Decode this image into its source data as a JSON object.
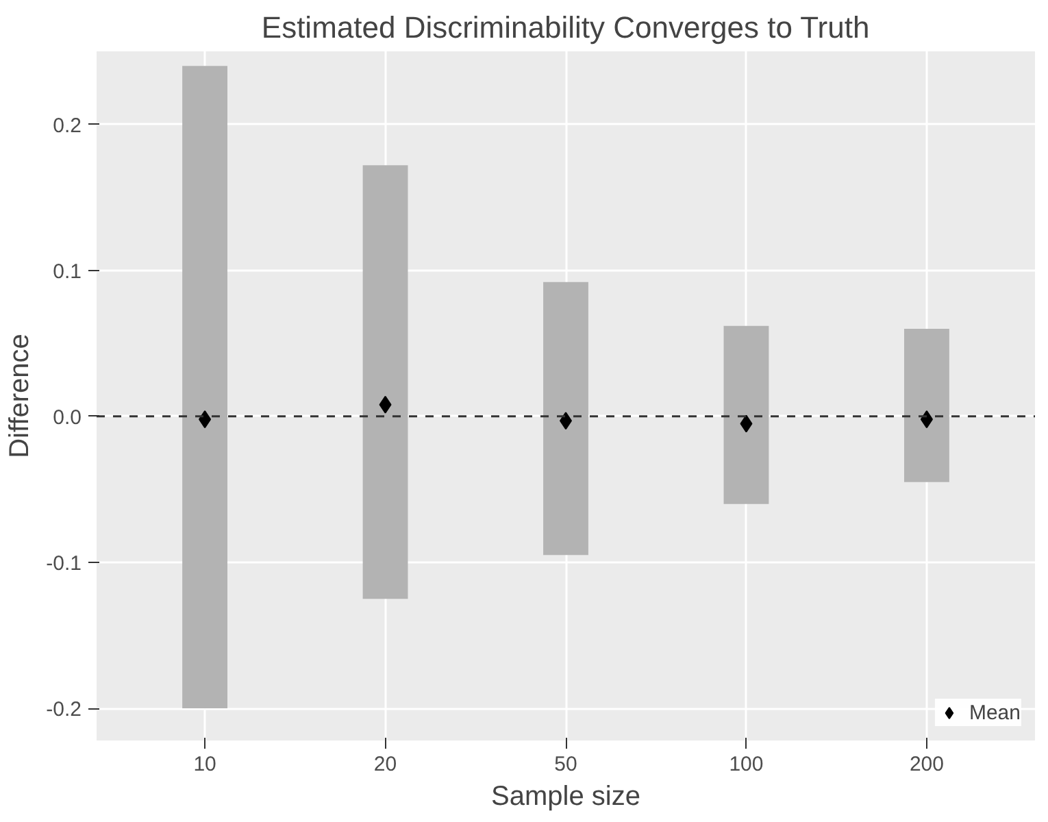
{
  "chart_data": {
    "type": "bar",
    "title": "Estimated Discriminability Converges to Truth",
    "xlabel": "Sample size",
    "ylabel": "Difference",
    "categories": [
      "10",
      "20",
      "50",
      "100",
      "200"
    ],
    "series": [
      {
        "color": "#b3b3b3",
        "base": [
          -0.2,
          -0.125,
          -0.095,
          -0.06,
          -0.045
        ],
        "values": [
          0.44,
          0.297,
          0.187,
          0.122,
          0.105
        ]
      },
      {
        "type": "scatter",
        "name": "Mean",
        "color": "#000000",
        "marker": "diamond",
        "x": [
          "10",
          "20",
          "50",
          "100",
          "200"
        ],
        "values": [
          -0.002,
          0.008,
          -0.003,
          -0.005,
          -0.002
        ]
      }
    ],
    "ylim": [
      -0.222,
      0.25
    ],
    "yticks": [
      {
        "value": -0.2,
        "label": "-0.2"
      },
      {
        "value": -0.1,
        "label": "-0.1"
      },
      {
        "value": 0,
        "label": "0.0"
      },
      {
        "value": 0.1,
        "label": "0.1"
      },
      {
        "value": 0.2,
        "label": "0.2"
      }
    ],
    "ref_lines": [
      {
        "axis": "y",
        "value": 0,
        "line_style": "dashed",
        "color": "#333333"
      }
    ],
    "grid": true,
    "legend": "bottom right"
  }
}
